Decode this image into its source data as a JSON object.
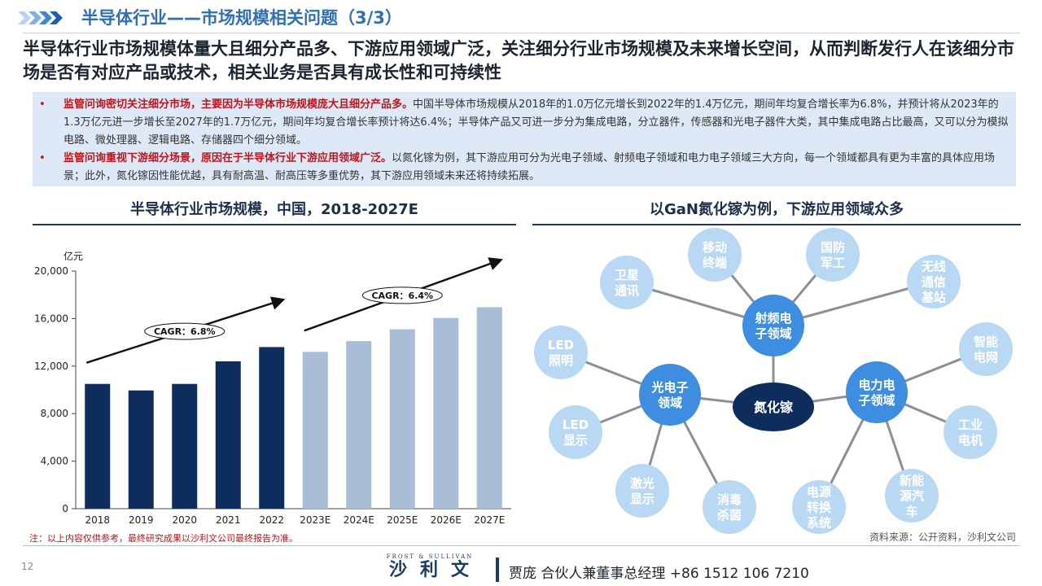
{
  "header": {
    "title": "半导体行业——市场规模相关问题（3/3）",
    "headline": "半导体行业市场规模体量大且细分产品多、下游应用领域广泛，关注细分行业市场规模及未来增长空间，从而判断发行人在该细分市场是否有对应产品或技术，相关业务是否具有成长性和可持续性"
  },
  "bullets": [
    {
      "marker": "•",
      "highlight": "监管问询密切关注细分市场，主要因为半导体市场规模庞大且细分产品多。",
      "text": "中国半导体市场规模从2018年的1.0万亿元增长到2022年的1.4万亿元，期间年均复合增长率为6.8%，并预计将从2023年的1.3万亿元进一步增长至2027年的1.7万亿元，期间年均复合增长率预计将达6.4%；半导体产品又可进一步分为集成电路，分立器件，传感器和光电子器件大类，其中集成电路占比最高，又可以分为模拟电路、微处理器、逻辑电路、存储器四个细分领域。"
    },
    {
      "marker": "•",
      "highlight": "监管问询重视下游细分场景，原因在于半导体行业下游应用领域广泛。",
      "text": "以氮化镓为例，其下游应用可分为光电子领域、射频电子领域和电力电子领域三大方向，每一个领域都具有更为丰富的具体应用场景；此外，氮化镓因性能优越，具有耐高温、耐高压等多重优势，其下游应用领域未来还将持续拓展。"
    }
  ],
  "left_section": {
    "title": "半导体行业市场规模，中国，2018-2027E"
  },
  "right_section": {
    "title": "以GaN氮化镓为例，下游应用领域众多"
  },
  "chart_data": {
    "type": "bar",
    "unit": "亿元",
    "categories": [
      "2018",
      "2019",
      "2020",
      "2021",
      "2022",
      "2023E",
      "2024E",
      "2025E",
      "2026E",
      "2027E"
    ],
    "values": [
      10500,
      9950,
      10500,
      12400,
      13600,
      13200,
      14100,
      15100,
      16050,
      16950
    ],
    "ylim": [
      0,
      20000
    ],
    "yticks": [
      "0",
      "4,000",
      "8,000",
      "12,000",
      "16,000",
      "20,000"
    ],
    "ytick_values": [
      0,
      4000,
      8000,
      12000,
      16000,
      20000
    ],
    "bar_colors": [
      "#0f2d5c",
      "#0f2d5c",
      "#0f2d5c",
      "#0f2d5c",
      "#0f2d5c",
      "#a9bdd6",
      "#a9bdd6",
      "#a9bdd6",
      "#a9bdd6",
      "#a9bdd6"
    ],
    "annotations": [
      {
        "label": "CAGR：6.8%",
        "from_index": 0,
        "to_index": 4
      },
      {
        "label": "CAGR：6.4%",
        "from_index": 5,
        "to_index": 9
      }
    ],
    "grid": false,
    "legend": "none"
  },
  "diagram": {
    "center": {
      "label": "氮化镓",
      "color": "#0f2d5c"
    },
    "hub_color": "#3d8ee0",
    "leaf_color": "#b9d8f4",
    "hubs": [
      {
        "label": "射频电子领域",
        "lines": [
          "射频电",
          "子领域"
        ],
        "leaves": [
          {
            "lines": [
              "卫星",
              "通讯"
            ]
          },
          {
            "lines": [
              "移动",
              "终端"
            ]
          },
          {
            "lines": [
              "国防",
              "军工"
            ]
          },
          {
            "lines": [
              "无线",
              "通信",
              "基站"
            ]
          }
        ]
      },
      {
        "label": "光电子领域",
        "lines": [
          "光电子",
          "领域"
        ],
        "leaves": [
          {
            "lines": [
              "LED",
              "照明"
            ]
          },
          {
            "lines": [
              "LED",
              "显示"
            ]
          },
          {
            "lines": [
              "激光",
              "显示"
            ]
          },
          {
            "lines": [
              "消毒",
              "杀菌"
            ]
          }
        ]
      },
      {
        "label": "电力电子领域",
        "lines": [
          "电力电",
          "子领域"
        ],
        "leaves": [
          {
            "lines": [
              "智能",
              "电网"
            ]
          },
          {
            "lines": [
              "工业",
              "电机"
            ]
          },
          {
            "lines": [
              "新能",
              "源汽",
              "车"
            ]
          },
          {
            "lines": [
              "电源",
              "转换",
              "系统"
            ]
          }
        ]
      }
    ]
  },
  "footer": {
    "note": "注：以上内容仅供参考，最终研究成果以沙利文公司最终报告为准。",
    "source": "资料来源：公开资料，沙利文公司",
    "page_number": "12",
    "logo_small": "FROST & SULLIVAN",
    "logo_main": "沙利文",
    "contact": "贾庞  合伙人兼董事总经理   +86 1512 106 7210"
  },
  "colors": {
    "title_blue": "#2f6fb6",
    "highlight_red": "#c0141b",
    "callout_bg": "#dde9f6",
    "navy": "#0f2d5c"
  }
}
